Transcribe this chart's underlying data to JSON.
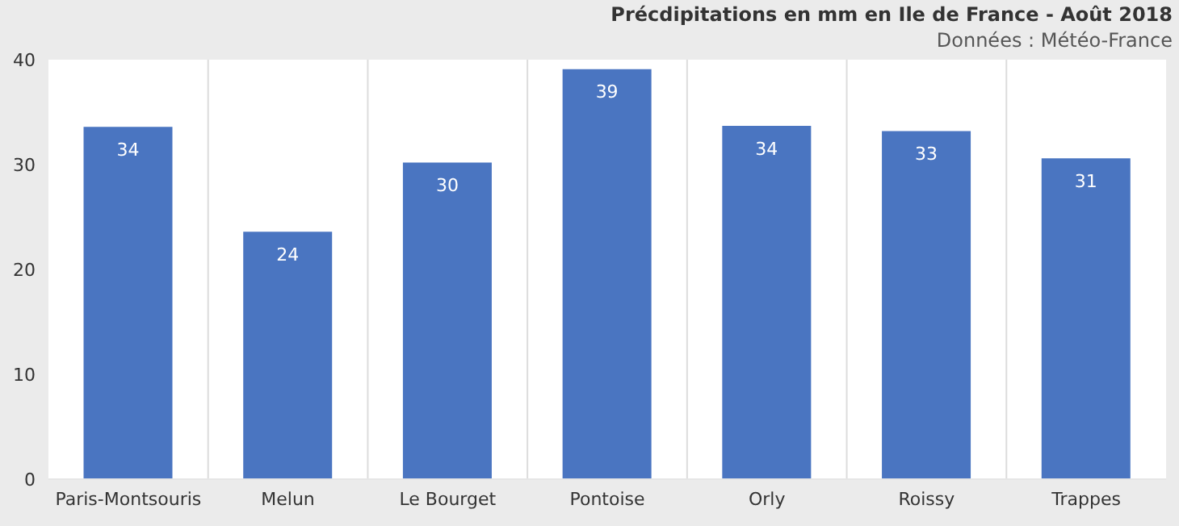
{
  "chart_data": {
    "type": "bar",
    "title": "Précdipitations en mm en Ile de France - Août 2018",
    "subtitle": "Données : Météo-France",
    "categories": [
      "Paris-Montsouris",
      "Melun",
      "Le Bourget",
      "Pontoise",
      "Orly",
      "Roissy",
      "Trappes"
    ],
    "values": [
      33.6,
      23.6,
      30.2,
      39.1,
      33.7,
      33.2,
      30.6
    ],
    "value_labels": [
      "34",
      "24",
      "30",
      "39",
      "34",
      "33",
      "31"
    ],
    "color": "#4a75c1",
    "ylim": [
      0,
      40
    ],
    "yticks": [
      0,
      10,
      20,
      30,
      40
    ],
    "grid": "x"
  }
}
